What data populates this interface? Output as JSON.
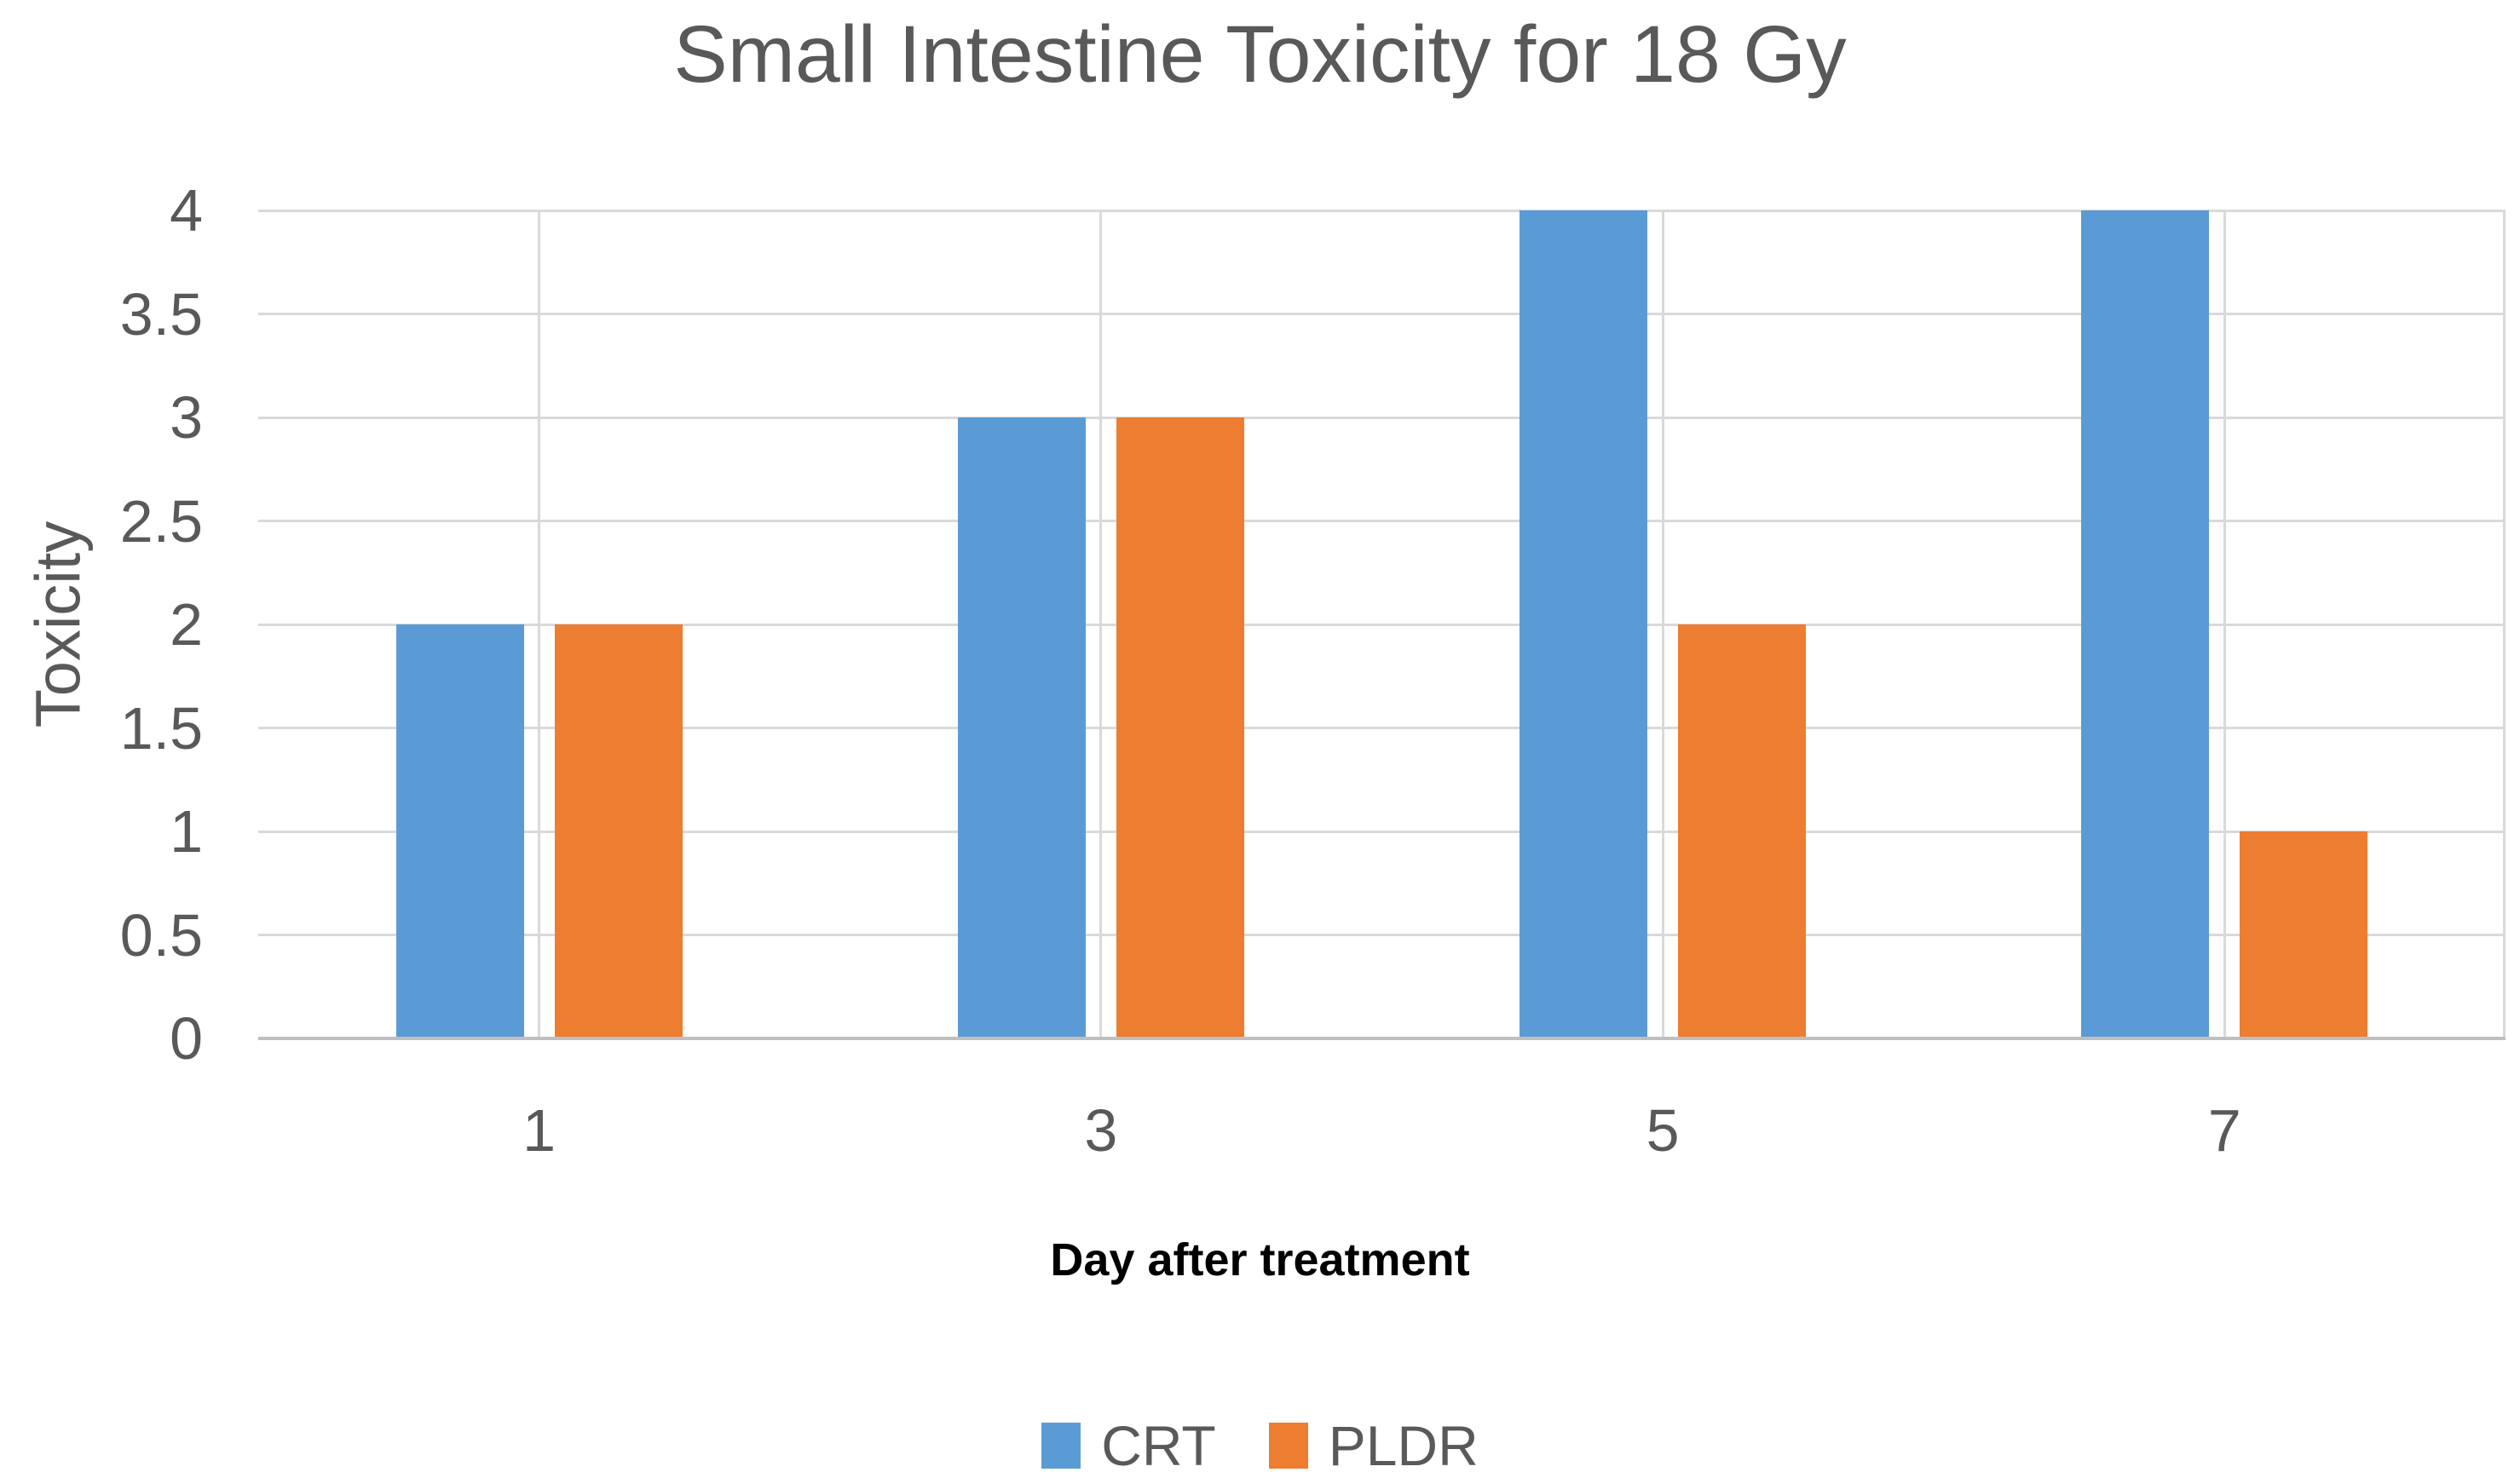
{
  "chart_data": {
    "type": "bar",
    "title": "Small Intestine Toxicity for 18 Gy",
    "xlabel": "Day after treatment",
    "ylabel": "Toxicity",
    "categories": [
      "1",
      "3",
      "5",
      "7"
    ],
    "series": [
      {
        "name": "CRT",
        "color": "#5B9BD5",
        "values": [
          2,
          3,
          4,
          4
        ]
      },
      {
        "name": "PLDR",
        "color": "#ED7D31",
        "values": [
          2,
          3,
          2,
          1
        ]
      }
    ],
    "ylim": [
      0,
      4
    ],
    "ytick_step": 0.5,
    "yticks": [
      "4",
      "3.5",
      "3",
      "2.5",
      "2",
      "1.5",
      "1",
      "0.5",
      "0"
    ],
    "grid": true,
    "legend_position": "bottom",
    "colors": {
      "text_gray": "#595959",
      "xlabel_text": "#000000",
      "gridline": "#D9D9D9",
      "axis_line": "#BFBFBF",
      "background": "#FFFFFF"
    }
  }
}
